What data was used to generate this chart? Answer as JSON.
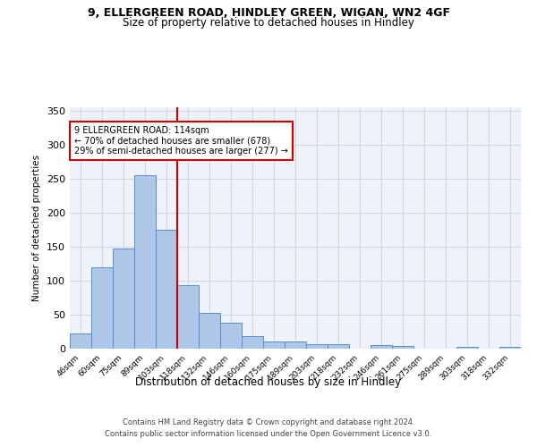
{
  "title1": "9, ELLERGREEN ROAD, HINDLEY GREEN, WIGAN, WN2 4GF",
  "title2": "Size of property relative to detached houses in Hindley",
  "xlabel": "Distribution of detached houses by size in Hindley",
  "ylabel": "Number of detached properties",
  "categories": [
    "46sqm",
    "60sqm",
    "75sqm",
    "89sqm",
    "103sqm",
    "118sqm",
    "132sqm",
    "146sqm",
    "160sqm",
    "175sqm",
    "189sqm",
    "203sqm",
    "218sqm",
    "232sqm",
    "246sqm",
    "261sqm",
    "275sqm",
    "289sqm",
    "303sqm",
    "318sqm",
    "332sqm"
  ],
  "values": [
    22,
    120,
    147,
    255,
    175,
    93,
    52,
    38,
    19,
    10,
    11,
    7,
    6,
    0,
    5,
    4,
    0,
    0,
    2,
    0,
    2
  ],
  "bar_color": "#aec6e8",
  "bar_edge_color": "#5a8fc8",
  "vline_x": 4.5,
  "vline_color": "#cc0000",
  "annotation_text": "9 ELLERGREEN ROAD: 114sqm\n← 70% of detached houses are smaller (678)\n29% of semi-detached houses are larger (277) →",
  "annotation_box_color": "white",
  "annotation_box_edge": "#cc0000",
  "grid_color": "#d0d8e8",
  "background_color": "#eef2fa",
  "ylim": [
    0,
    355
  ],
  "yticks": [
    0,
    50,
    100,
    150,
    200,
    250,
    300,
    350
  ],
  "footnote1": "Contains HM Land Registry data © Crown copyright and database right 2024.",
  "footnote2": "Contains public sector information licensed under the Open Government Licence v3.0."
}
